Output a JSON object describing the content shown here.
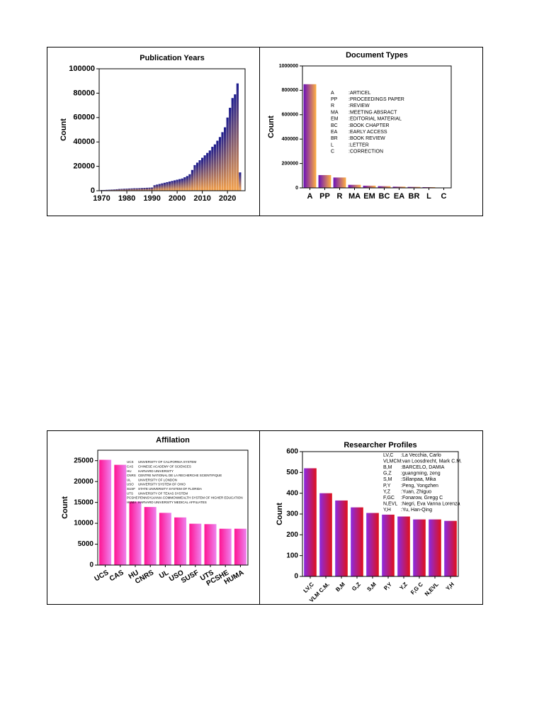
{
  "chart_data": [
    {
      "type": "bar",
      "title": "Publication Years",
      "y_label": "Count",
      "x": [
        1970,
        1971,
        1972,
        1973,
        1974,
        1975,
        1976,
        1977,
        1978,
        1979,
        1980,
        1981,
        1982,
        1983,
        1984,
        1985,
        1986,
        1987,
        1988,
        1989,
        1990,
        1991,
        1992,
        1993,
        1994,
        1995,
        1996,
        1997,
        1998,
        1999,
        2000,
        2001,
        2002,
        2003,
        2004,
        2005,
        2006,
        2007,
        2008,
        2009,
        2010,
        2011,
        2012,
        2013,
        2014,
        2015,
        2016,
        2017,
        2018,
        2019,
        2020,
        2021,
        2022,
        2023,
        2024,
        2025
      ],
      "values": [
        500,
        600,
        700,
        800,
        900,
        1000,
        1200,
        1400,
        1500,
        1600,
        1700,
        1800,
        1900,
        2000,
        2000,
        2100,
        2200,
        2300,
        2400,
        2500,
        2600,
        4500,
        5000,
        5500,
        6000,
        6500,
        7000,
        7500,
        8000,
        8500,
        9000,
        9500,
        10000,
        11000,
        12000,
        13500,
        17000,
        21000,
        23000,
        25000,
        27000,
        29000,
        31000,
        33000,
        36000,
        38000,
        41000,
        44000,
        48000,
        52000,
        60000,
        68000,
        76000,
        79000,
        88000,
        15000
      ],
      "xlim": [
        1969,
        2027
      ],
      "xticks": [
        1970,
        1980,
        1990,
        2000,
        2010,
        2020
      ],
      "ylim": [
        0,
        100000
      ],
      "yticks": [
        0,
        20000,
        40000,
        60000,
        80000,
        100000
      ],
      "gradient": [
        "#f5a24c",
        "#1a1a8e"
      ]
    },
    {
      "type": "bar",
      "title": "Document Types",
      "y_label": "Count",
      "categories": [
        "A",
        "PP",
        "R",
        "MA",
        "EM",
        "BC",
        "EA",
        "BR",
        "L",
        "C"
      ],
      "values": [
        850000,
        105000,
        85000,
        25000,
        18000,
        14000,
        10000,
        8000,
        6000,
        2000
      ],
      "ylim": [
        0,
        1000000
      ],
      "yticks": [
        0,
        200000,
        400000,
        600000,
        800000,
        1000000
      ],
      "gradient": [
        "#6a10b8",
        "#ffb040"
      ],
      "legend": [
        {
          "code": "A",
          "name": ":ARTICEL"
        },
        {
          "code": "PP",
          "name": ":PROCEEDINGS PAPER"
        },
        {
          "code": "R",
          "name": ":REVIEW"
        },
        {
          "code": "MA",
          "name": ":MEETING ABSRACT"
        },
        {
          "code": "EM",
          "name": ":EDITORIAL MATERIAL"
        },
        {
          "code": "BC",
          "name": ":BOOK CHAPTER"
        },
        {
          "code": "EA",
          "name": ":EARLY ACCESS"
        },
        {
          "code": "BR",
          "name": ":BOOK REVIEW"
        },
        {
          "code": "L",
          "name": ":LETTER"
        },
        {
          "code": "C",
          "name": ":CORRECTION"
        }
      ]
    },
    {
      "type": "bar",
      "title": "Affilation",
      "y_label": "Count",
      "categories": [
        "UCS",
        "CAS",
        "HU",
        "CNRS",
        "UL",
        "USO",
        "SUSF",
        "UTS",
        "PCSHE",
        "HUMA"
      ],
      "values": [
        25200,
        24000,
        15200,
        13900,
        12500,
        11400,
        9900,
        9800,
        8700,
        8700
      ],
      "ylim": [
        0,
        27500
      ],
      "yticks": [
        0,
        5000,
        10000,
        15000,
        20000,
        25000
      ],
      "gradient": [
        "#ff1493",
        "#ee82ee"
      ],
      "legend": [
        {
          "code": "UCS",
          "name": "UNIVERSITY OF CALIFORNIA SYSTEM"
        },
        {
          "code": "CAS",
          "name": "CHINESE ACADEMY OF SCIENCES"
        },
        {
          "code": "HU",
          "name": "HARVARD UNIVERSITY"
        },
        {
          "code": "CNRS",
          "name": "CENTRE NATIONAL DE LA RECHERCHE SCIENTIFIQUE"
        },
        {
          "code": "UL",
          "name": "UNIVERSITY OF LONDON"
        },
        {
          "code": "USO",
          "name": "UNIVERSITY SYSTEM OF OHIO"
        },
        {
          "code": "SUSF",
          "name": "STATE UNIVERSITY SYSTEM OF FLORIDA"
        },
        {
          "code": "UTS",
          "name": "UNIVERSITY OF TEXAS SYSTEM"
        },
        {
          "code": "PCSHE",
          "name": "PENNSYLVANIA COMMONWEALTH SYSTEM OF HIGHER EDUCATION"
        },
        {
          "code": "HUMA",
          "name": "HARVARD UNIVERSITY MEDICAL AFFILIATES"
        }
      ]
    },
    {
      "type": "bar",
      "title": "Researcher Profiles",
      "y_label": "Count",
      "categories": [
        "LV,C",
        "VLM C.M.",
        "B,M",
        "G,Z",
        "S,M",
        "P,Y",
        "Y,Z",
        "F,G C",
        "N,EVL",
        "Y,H"
      ],
      "values": [
        520,
        400,
        365,
        332,
        305,
        297,
        288,
        274,
        274,
        267
      ],
      "ylim": [
        0,
        600
      ],
      "yticks": [
        0,
        100,
        200,
        300,
        400,
        500,
        600
      ],
      "gradient": [
        "#8a2be2",
        "#e0101a"
      ],
      "legend": [
        {
          "code": "LV,C",
          "name": ":La Vecchia, Carlo"
        },
        {
          "code": "VLMCM",
          "name": ":van Loosdrecht, Mark C.M."
        },
        {
          "code": "B,M",
          "name": ":BARCELO, DAMIA"
        },
        {
          "code": "G,Z",
          "name": ":guangming, zeng"
        },
        {
          "code": "S,M",
          "name": ":Sillanpaa, Mika"
        },
        {
          "code": "P,Y",
          "name": ":Peng, Yongzhen"
        },
        {
          "code": "Y,Z",
          "name": ":Yuan, Zhiguo"
        },
        {
          "code": "F,GC",
          "name": ":Fonarow, Gregg C"
        },
        {
          "code": "N,EVL",
          "name": ":Negri, Eva Vanna Lorenza"
        },
        {
          "code": "Y,H",
          "name": ":Yu, Han-Qing"
        }
      ]
    }
  ]
}
